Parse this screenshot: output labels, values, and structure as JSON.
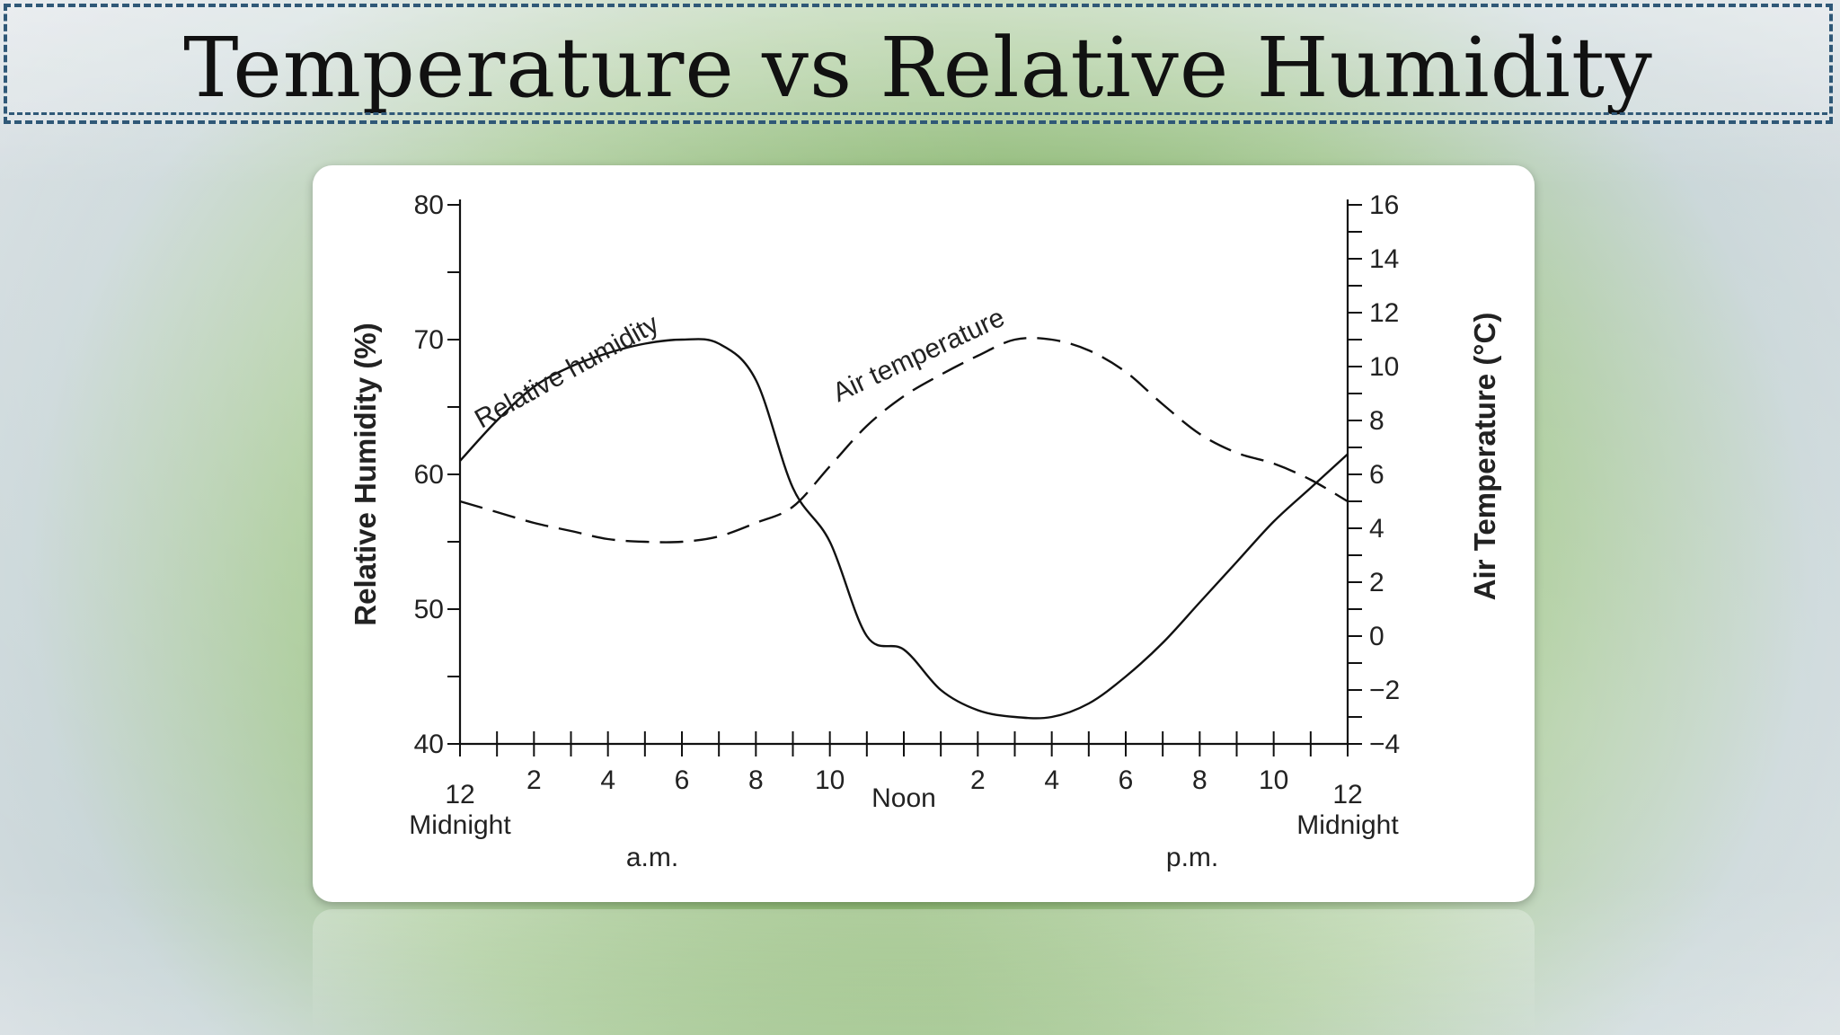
{
  "title": "Temperature vs Relative Humidity",
  "chart_data": {
    "type": "line",
    "x_tick_labels": [
      "2",
      "4",
      "6",
      "8",
      "10",
      "2",
      "4",
      "6",
      "8",
      "10"
    ],
    "x_start_label": [
      "12",
      "Midnight"
    ],
    "x_noon_label": "Noon",
    "x_end_label": [
      "12",
      "Midnight"
    ],
    "am_label": "a.m.",
    "pm_label": "p.m.",
    "xlim_hours": [
      0,
      24
    ],
    "left_axis": {
      "label": "Relative Humidity (%)",
      "ylim": [
        40,
        80
      ],
      "ticks": [
        "40",
        "50",
        "60",
        "70",
        "80"
      ]
    },
    "right_axis": {
      "label": "Air Temperature (°C)",
      "ylim": [
        -4,
        16
      ],
      "ticks": [
        "−4",
        "−2",
        "0",
        "2",
        "4",
        "6",
        "8",
        "10",
        "12",
        "14",
        "16"
      ]
    },
    "series": [
      {
        "name": "Relative humidity",
        "axis": "left",
        "style": "solid",
        "x": [
          0,
          1,
          2,
          3,
          4,
          5,
          6,
          7,
          8,
          9,
          10,
          11,
          12,
          13,
          14,
          15,
          16,
          17,
          18,
          19,
          20,
          21,
          22,
          23,
          24
        ],
        "y": [
          61,
          64,
          66.5,
          68,
          69,
          69.7,
          70,
          69.7,
          67,
          59,
          55,
          48,
          47,
          44,
          42.5,
          42,
          42,
          43,
          45,
          47.5,
          50.5,
          53.5,
          56.5,
          59,
          61.5
        ]
      },
      {
        "name": "Air temperature",
        "axis": "right",
        "style": "dashed",
        "x": [
          0,
          1,
          2,
          3,
          4,
          5,
          6,
          7,
          8,
          9,
          10,
          11,
          12,
          13,
          14,
          15,
          16,
          17,
          18,
          19,
          20,
          21,
          22,
          23,
          24
        ],
        "y": [
          5.0,
          4.6,
          4.2,
          3.9,
          3.6,
          3.5,
          3.5,
          3.7,
          4.2,
          4.8,
          6.3,
          7.8,
          8.9,
          9.7,
          10.4,
          11.0,
          11.0,
          10.6,
          9.8,
          8.6,
          7.5,
          6.8,
          6.4,
          5.8,
          5.0
        ]
      }
    ]
  }
}
